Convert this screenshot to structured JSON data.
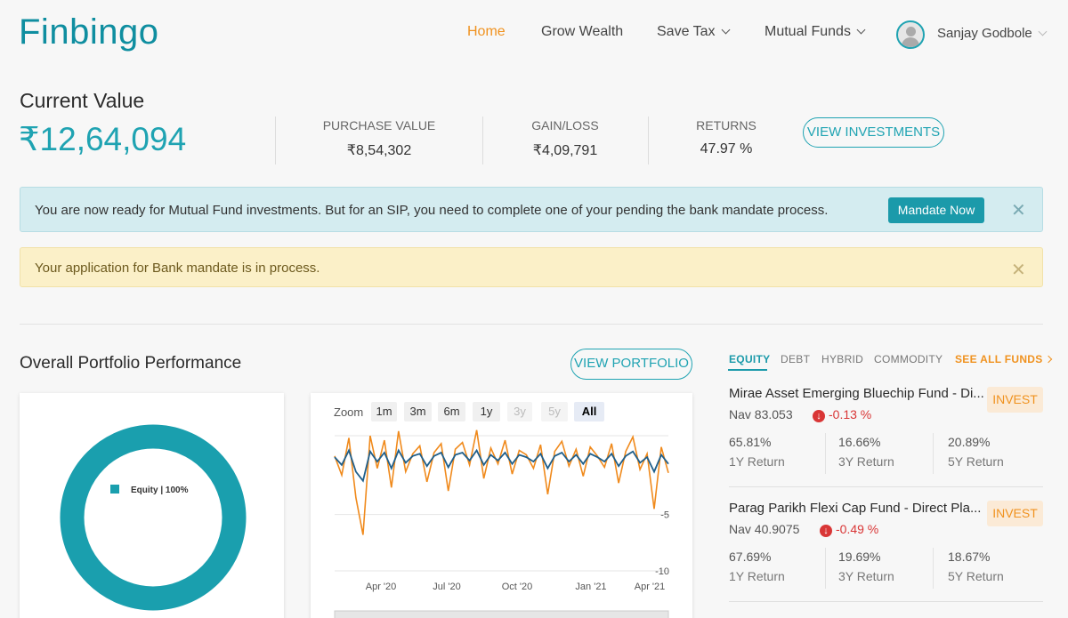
{
  "header": {
    "logo": "Finbingo",
    "nav": {
      "home": "Home",
      "grow_wealth": "Grow Wealth",
      "save_tax": "Save Tax",
      "mutual_funds": "Mutual Funds"
    },
    "user_name": "Sanjay Godbole"
  },
  "summary": {
    "current_value_label": "Current Value",
    "current_value": "₹12,64,094",
    "purchase_value_label": "PURCHASE VALUE",
    "purchase_value": "₹8,54,302",
    "gain_loss_label": "GAIN/LOSS",
    "gain_loss": "₹4,09,791",
    "returns_label": "RETURNS",
    "returns": "47.97 %",
    "view_investments": "VIEW INVESTMENTS"
  },
  "alerts": {
    "info_message": "You are now ready for Mutual Fund investments. But for an SIP, you need to complete one of your pending the bank mandate process.",
    "info_button": "Mandate Now",
    "warning_message": "Your application for Bank mandate is in process.",
    "close_symbol": "✕"
  },
  "performance": {
    "title": "Overall Portfolio Performance",
    "view_portfolio": "VIEW PORTFOLIO",
    "donut_legend": "Equity | 100%",
    "zoom_label": "Zoom",
    "zoom_options": [
      "1m",
      "3m",
      "6m",
      "1y",
      "3y",
      "5y",
      "All"
    ],
    "selected_zoom": "All"
  },
  "chart_data": {
    "type": "line",
    "x_ticks": [
      "Apr '20",
      "Jul '20",
      "Oct '20",
      "Jan '21",
      "Apr '21"
    ],
    "y_ticks": [
      "-5",
      "-10"
    ],
    "series": [
      {
        "color": "#f08a1c",
        "values": [
          0.2,
          -1.5,
          1.8,
          -3.5,
          -6.8,
          2.0,
          -0.9,
          1.6,
          -2.6,
          2.4,
          -1.2,
          0.4,
          1.1,
          -2.1,
          0.5,
          1.3,
          -2.9,
          0.8,
          1.4,
          -0.6,
          2.5,
          -1.8,
          0.9,
          -0.5,
          1.6,
          -1.4,
          0.7,
          0.3,
          -0.9,
          1.2,
          -3.2,
          0.6,
          1.5,
          -0.7,
          0.8,
          -1.6,
          1.0,
          0.2,
          -0.8,
          1.3,
          -2.2,
          0.6,
          1.9,
          -1.0,
          0.4,
          -4.5,
          1.0,
          -1.3
        ]
      },
      {
        "color": "#1f5f8b",
        "values": [
          0.1,
          -0.6,
          0.7,
          -1.2,
          -2.0,
          0.6,
          -0.3,
          0.5,
          -0.9,
          0.7,
          -0.4,
          0.2,
          0.4,
          -0.7,
          0.2,
          0.5,
          -0.8,
          0.3,
          0.5,
          -0.2,
          0.7,
          -0.6,
          0.3,
          -0.2,
          0.5,
          -0.5,
          0.3,
          0.1,
          -0.3,
          0.4,
          -0.9,
          0.2,
          0.5,
          -0.3,
          0.3,
          -0.5,
          0.4,
          0.1,
          -0.3,
          0.4,
          -0.7,
          0.2,
          0.6,
          -0.4,
          0.1,
          -1.2,
          0.3,
          -0.5
        ]
      }
    ],
    "ylim": [
      -10,
      2
    ],
    "donut": {
      "type": "pie",
      "categories": [
        "Equity"
      ],
      "values": [
        100
      ],
      "color": "#1a9fae"
    }
  },
  "funds": {
    "tabs": [
      "EQUITY",
      "DEBT",
      "HYBRID",
      "COMMODITY"
    ],
    "see_all": "SEE ALL FUNDS",
    "invest_label": "INVEST",
    "ret_labels": [
      "1Y Return",
      "3Y Return",
      "5Y Return"
    ],
    "items": [
      {
        "name": "Mirae Asset Emerging Bluechip Fund - Di...",
        "nav": "Nav 83.053",
        "change": "-0.13 %",
        "returns": [
          "65.81%",
          "16.66%",
          "20.89%"
        ]
      },
      {
        "name": "Parag Parikh Flexi Cap Fund - Direct Pla...",
        "nav": "Nav 40.9075",
        "change": "-0.49 %",
        "returns": [
          "67.69%",
          "19.69%",
          "18.67%"
        ]
      }
    ]
  }
}
